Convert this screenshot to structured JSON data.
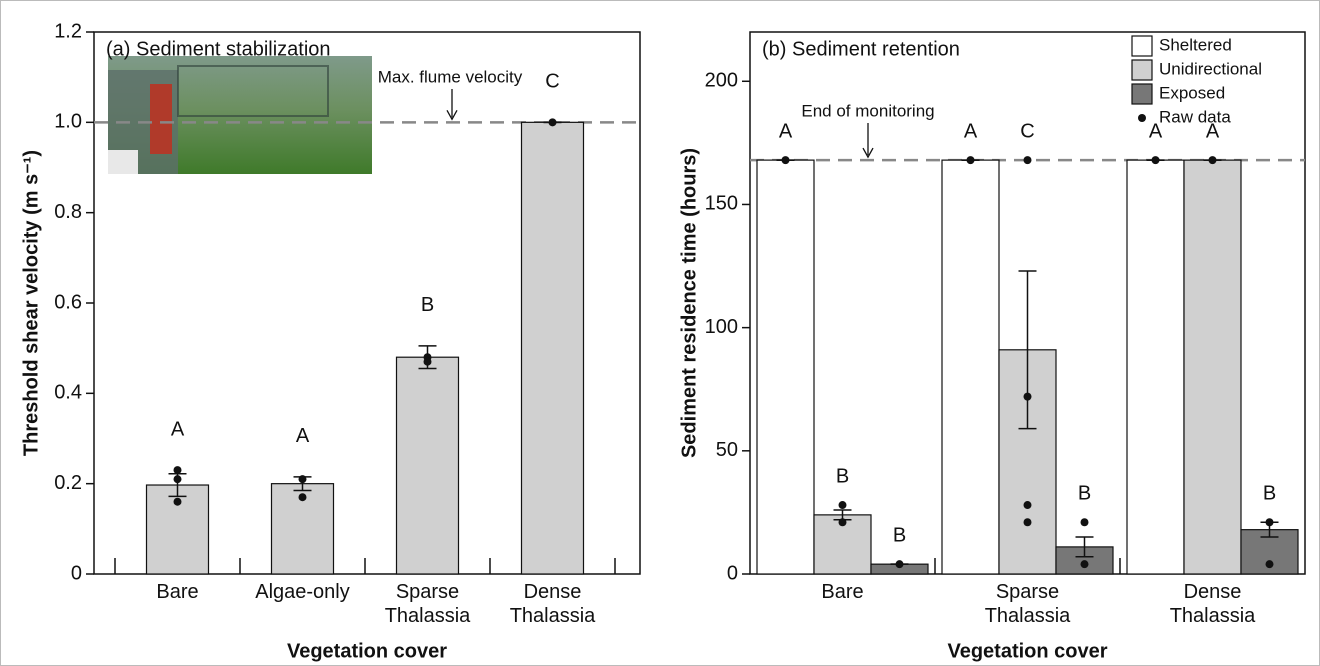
{
  "chart_data": [
    {
      "type": "bar",
      "title": "(a) Sediment stabilization",
      "x_label": "Vegetation cover",
      "y_label": "Threshold shear velocity (m s⁻¹)",
      "categories": [
        "Bare",
        "Algae-only",
        "Sparse Thalassia",
        "Dense Thalassia"
      ],
      "values": [
        0.197,
        0.2,
        0.48,
        1.0
      ],
      "errors": [
        0.025,
        0.015,
        0.025,
        0
      ],
      "letters": [
        "A",
        "A",
        "B",
        "C"
      ],
      "raw_data": [
        [
          0.23,
          0.21,
          0.16
        ],
        [
          0.21,
          0.17
        ],
        [
          0.48,
          0.47
        ],
        [
          1.0
        ]
      ],
      "color": "#d0d0d0",
      "ylim": [
        0,
        1.2
      ],
      "yticks": [
        0,
        0.2,
        0.4,
        0.6,
        0.8,
        {
          "value": 1,
          "label": "1.0"
        },
        1.2
      ],
      "reference_line": {
        "value": 1,
        "label": "Max. flume velocity"
      }
    },
    {
      "type": "grouped_bar",
      "title": "(b) Sediment retention",
      "x_label": "Vegetation cover",
      "y_label": "Sediment residence time (hours)",
      "categories": [
        "Bare",
        "Sparse Thalassia",
        "Dense Thalassia"
      ],
      "series": [
        {
          "name": "Sheltered",
          "color": "#ffffff",
          "values": [
            168,
            168,
            168
          ],
          "errors": [
            0,
            0,
            0
          ],
          "letters": [
            "A",
            "A",
            "A"
          ],
          "raw_data": [
            [
              168
            ],
            [
              168
            ],
            [
              168
            ]
          ]
        },
        {
          "name": "Unidirectional",
          "color": "#d0d0d0",
          "values": [
            24,
            91,
            168
          ],
          "errors": [
            2,
            32,
            0
          ],
          "letters": [
            "B",
            "C",
            "A"
          ],
          "raw_data": [
            [
              28,
              21
            ],
            [
              168,
              72,
              28,
              21
            ],
            [
              168
            ]
          ]
        },
        {
          "name": "Exposed",
          "color": "#777777",
          "values": [
            4,
            11,
            18
          ],
          "errors": [
            0,
            4,
            3
          ],
          "letters": [
            "B",
            "B",
            "B"
          ],
          "raw_data": [
            [
              4
            ],
            [
              21,
              4
            ],
            [
              21,
              4
            ]
          ]
        }
      ],
      "raw_data_label": "Raw data",
      "legend": "top-right",
      "ylim": [
        0,
        220
      ],
      "yticks": [
        0,
        50,
        100,
        150,
        200
      ],
      "reference_line": {
        "value": 168,
        "label": "End of monitoring"
      }
    }
  ]
}
